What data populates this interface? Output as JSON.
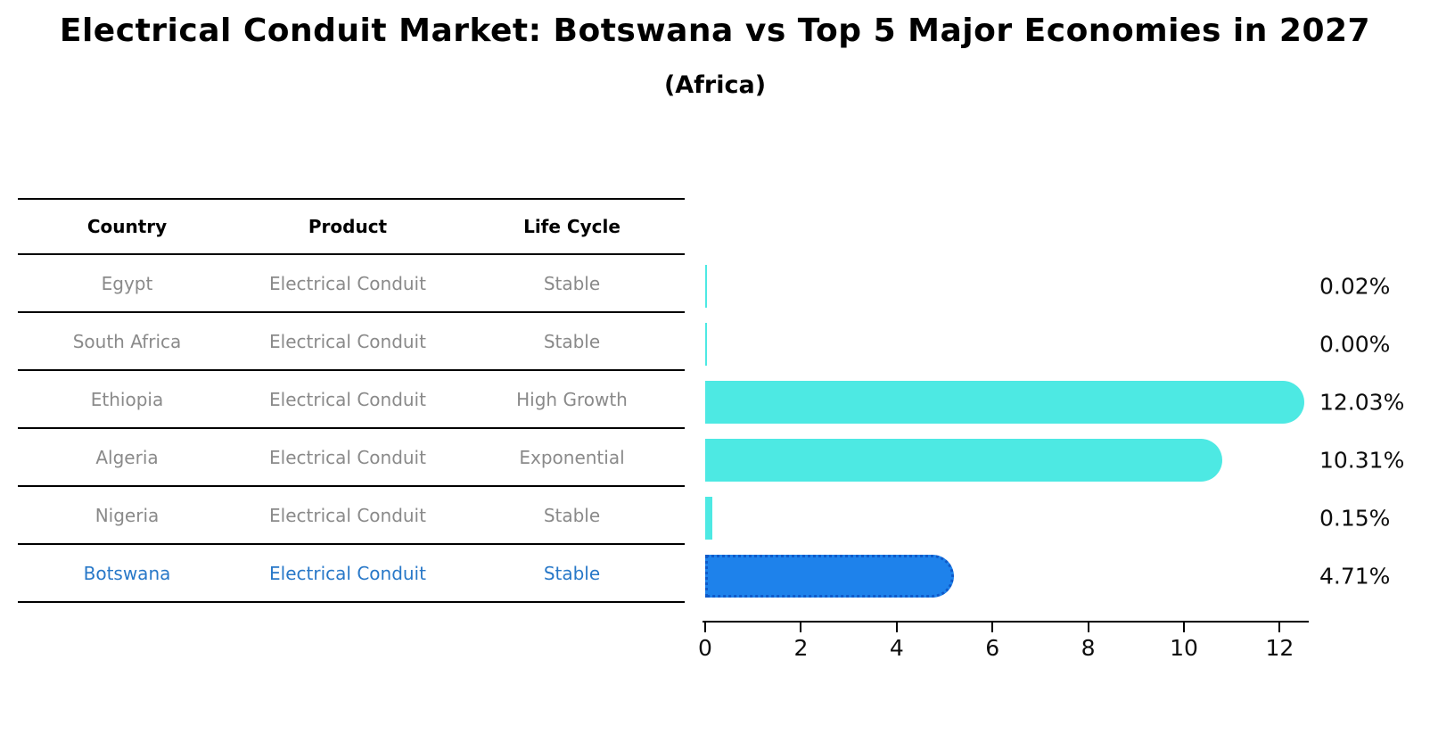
{
  "title": "Electrical Conduit Market: Botswana vs Top 5 Major Economies in 2027",
  "subtitle": "(Africa)",
  "colors": {
    "bar_teal": "#4DE9E3",
    "bar_blue": "#1E82EB",
    "bar_blue_border": "#0F5AC9",
    "highlight_text": "#2878C8",
    "row_text": "#8A8A8A",
    "heading_text": "#000000"
  },
  "table": {
    "columns": [
      "Country",
      "Product",
      "Life Cycle"
    ]
  },
  "chart_data": {
    "type": "bar",
    "orientation": "horizontal",
    "title": "Electrical Conduit Market: Botswana vs Top 5 Major Economies in 2027",
    "subtitle": "(Africa)",
    "value_unit": "%",
    "xlim": [
      0,
      12.6
    ],
    "x_ticks": [
      0,
      2,
      4,
      6,
      8,
      10,
      12
    ],
    "grid": false,
    "legend": "none",
    "rows": [
      {
        "country": "Egypt",
        "product": "Electrical Conduit",
        "life_cycle": "Stable",
        "value": 0.02,
        "label": "0.02%",
        "highlight": false
      },
      {
        "country": "South Africa",
        "product": "Electrical Conduit",
        "life_cycle": "Stable",
        "value": 0.0,
        "label": "0.00%",
        "highlight": false
      },
      {
        "country": "Ethiopia",
        "product": "Electrical Conduit",
        "life_cycle": "High Growth",
        "value": 12.03,
        "label": "12.03%",
        "highlight": false
      },
      {
        "country": "Algeria",
        "product": "Electrical Conduit",
        "life_cycle": "Exponential",
        "value": 10.31,
        "label": "10.31%",
        "highlight": false
      },
      {
        "country": "Nigeria",
        "product": "Electrical Conduit",
        "life_cycle": "Stable",
        "value": 0.15,
        "label": "0.15%",
        "highlight": false
      },
      {
        "country": "Botswana",
        "product": "Electrical Conduit",
        "life_cycle": "Stable",
        "value": 4.71,
        "label": "4.71%",
        "highlight": true
      }
    ]
  }
}
